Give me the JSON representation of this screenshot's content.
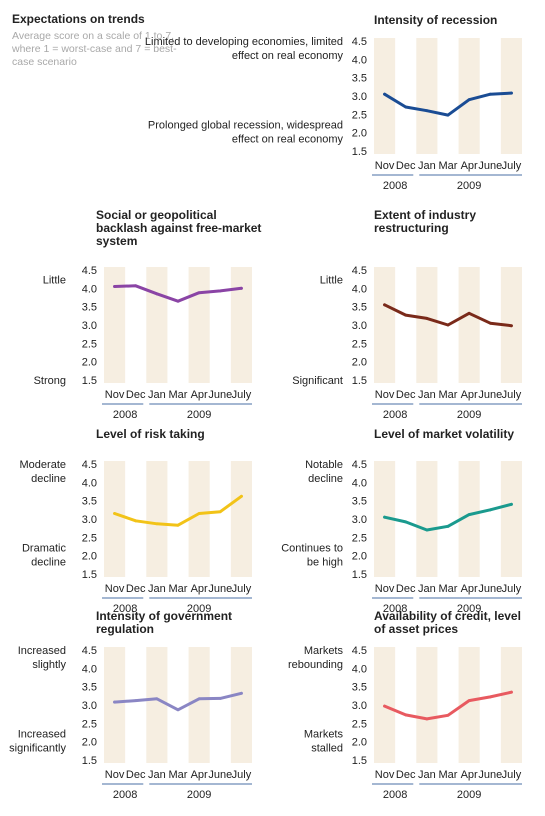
{
  "intro": {
    "title": "Expectations on trends",
    "subtitle": "Average score on a scale of 1 to 7, where 1 = worst-case and 7 = best-case scenario"
  },
  "axis": {
    "months": [
      "Nov",
      "Dec",
      "Jan",
      "Mar",
      "Apr",
      "June",
      "July"
    ],
    "years": [
      "2008",
      "2009"
    ],
    "yticks": [
      "4.5",
      "4.0",
      "3.5",
      "3.0",
      "2.5",
      "2.0",
      "1.5"
    ]
  },
  "colors": {
    "band": "#f6eee1",
    "year_rule": "#4a6fa5",
    "text": "#222222"
  },
  "chart_data": [
    {
      "type": "line",
      "title": "Intensity of recession",
      "top_label": "Limited to developing economies, limited effect on real economy",
      "bottom_label": "Prolonged global recession, widespread effect on real economy",
      "categories": [
        "Nov",
        "Dec",
        "Jan",
        "Mar",
        "Apr",
        "June",
        "July"
      ],
      "values": [
        3.05,
        2.7,
        2.6,
        2.48,
        2.9,
        3.05,
        3.08
      ],
      "ylim": [
        1.5,
        4.5
      ],
      "color": "#1a4c94"
    },
    {
      "type": "line",
      "title": "Social or geopolitical backlash against free-market system",
      "top_label": "Little",
      "bottom_label": "Strong",
      "categories": [
        "Nov",
        "Dec",
        "Jan",
        "Mar",
        "Apr",
        "June",
        "July"
      ],
      "values": [
        4.05,
        4.07,
        3.85,
        3.65,
        3.88,
        3.93,
        4.0
      ],
      "ylim": [
        1.5,
        4.5
      ],
      "color": "#8a44a5"
    },
    {
      "type": "line",
      "title": "Extent of industry restructuring",
      "top_label": "Little",
      "bottom_label": "Significant",
      "categories": [
        "Nov",
        "Dec",
        "Jan",
        "Mar",
        "Apr",
        "June",
        "July"
      ],
      "values": [
        3.55,
        3.27,
        3.18,
        3.0,
        3.32,
        3.05,
        2.98
      ],
      "ylim": [
        1.5,
        4.5
      ],
      "color": "#7a2a1a"
    },
    {
      "type": "line",
      "title": "Level of risk taking",
      "top_label": "Moderate decline",
      "bottom_label": "Dramatic decline",
      "categories": [
        "Nov",
        "Dec",
        "Jan",
        "Mar",
        "Apr",
        "June",
        "July"
      ],
      "values": [
        3.15,
        2.95,
        2.87,
        2.83,
        3.15,
        3.2,
        3.62
      ],
      "ylim": [
        1.5,
        4.5
      ],
      "color": "#f2c318"
    },
    {
      "type": "line",
      "title": "Level of market volatility",
      "top_label": "Notable decline",
      "bottom_label": "Continues to be high",
      "categories": [
        "Nov",
        "Dec",
        "Jan",
        "Mar",
        "Apr",
        "June",
        "July"
      ],
      "values": [
        3.05,
        2.92,
        2.7,
        2.8,
        3.12,
        3.25,
        3.4
      ],
      "ylim": [
        1.5,
        4.5
      ],
      "color": "#1a9a8e"
    },
    {
      "type": "line",
      "title": "Intensity of government regulation",
      "top_label": "Increased slightly",
      "bottom_label": "Increased significantly",
      "categories": [
        "Nov",
        "Dec",
        "Jan",
        "Mar",
        "Apr",
        "June",
        "July"
      ],
      "values": [
        3.08,
        3.12,
        3.17,
        2.87,
        3.17,
        3.18,
        3.32
      ],
      "ylim": [
        1.5,
        4.5
      ],
      "color": "#8a86c4"
    },
    {
      "type": "line",
      "title": "Availability of credit, level of asset prices",
      "top_label": "Markets rebounding",
      "bottom_label": "Markets stalled",
      "categories": [
        "Nov",
        "Dec",
        "Jan",
        "Mar",
        "Apr",
        "June",
        "July"
      ],
      "values": [
        2.97,
        2.73,
        2.62,
        2.72,
        3.12,
        3.22,
        3.35
      ],
      "ylim": [
        1.5,
        4.5
      ],
      "color": "#e85a60"
    }
  ]
}
